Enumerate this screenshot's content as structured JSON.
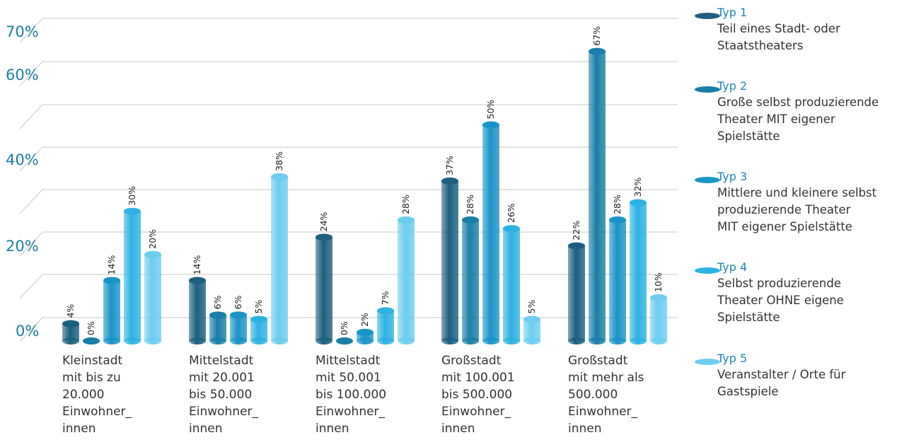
{
  "chart_data": {
    "type": "bar",
    "y_axis_labels": [
      "70%",
      "60%",
      "40%",
      "20%",
      "0%"
    ],
    "ylim": [
      0,
      70
    ],
    "grid": true,
    "legend_position": "right",
    "categories": [
      "Kleinstadt\nmit bis zu\n20.000\nEinwohner_\ninnen",
      "Mittelstadt\nmit 20.001\nbis 50.000\nEinwohner_\ninnen",
      "Mittelstadt\nmit 50.001\nbis 100.000\nEinwohner_\ninnen",
      "Großstadt\nmit 100.001\nbis 500.000\nEinwohner_\ninnen",
      "Großstadt\nmit mehr als\n500.000\nEinwohner_\ninnen"
    ],
    "series": [
      {
        "name": "Typ 1",
        "description": "Teil eines Stadt- oder\nStaatstheaters",
        "color": "#1c5f80",
        "values": [
          4,
          14,
          24,
          37,
          22
        ]
      },
      {
        "name": "Typ 2",
        "description": "Große selbst produzierende\nTheater MIT eigener\nSpielstätte",
        "color": "#1a7ea8",
        "values": [
          0,
          6,
          0,
          28,
          67
        ]
      },
      {
        "name": "Typ 3",
        "description": "Mittlere und kleinere selbst\nproduzierende Theater\nMIT eigener Spielstätte",
        "color": "#1994c8",
        "values": [
          14,
          6,
          2,
          50,
          28
        ]
      },
      {
        "name": "Typ 4",
        "description": "Selbst produzierende\nTheater OHNE eigene\nSpielstätte",
        "color": "#2cb2e2",
        "values": [
          30,
          5,
          7,
          26,
          32
        ]
      },
      {
        "name": "Typ 5",
        "description": "Veranstalter / Orte für\nGastspiele",
        "color": "#6ccdf0",
        "values": [
          20,
          38,
          28,
          5,
          10
        ]
      }
    ]
  }
}
